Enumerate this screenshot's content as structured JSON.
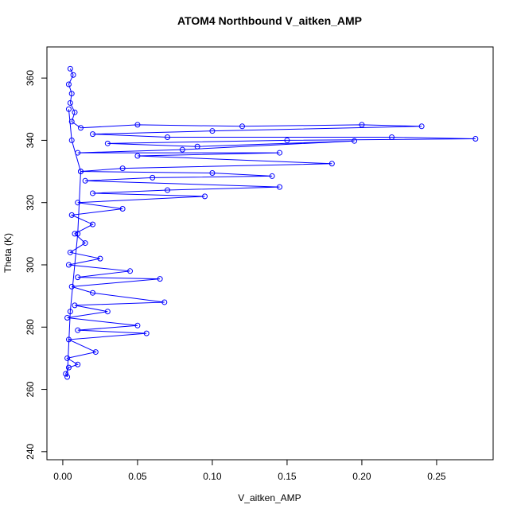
{
  "chart_data": {
    "type": "line",
    "title": "ATOM4 Northbound V_aitken_AMP",
    "x_label": "V_aitken_AMP",
    "y_label": "Theta (K)",
    "color": "#0000ff",
    "markers": true,
    "xlim": [
      -0.0106,
      0.2878
    ],
    "ylim": [
      237.4,
      370
    ],
    "xticks": [
      {
        "value": 0,
        "label": "0.00"
      },
      0.05,
      {
        "value": 0.1,
        "label": "0.10"
      },
      0.15,
      {
        "value": 0.2,
        "label": "0.20"
      },
      0.25
    ],
    "yticks": [
      240,
      260,
      280,
      300,
      320,
      340,
      360
    ],
    "x": [
      0.005,
      0.007,
      0.004,
      0.006,
      0.005,
      0.008,
      0.006,
      0.012,
      0.05,
      0.12,
      0.2,
      0.24,
      0.1,
      0.02,
      0.07,
      0.22,
      0.276,
      0.15,
      0.03,
      0.09,
      0.195,
      0.08,
      0.01,
      0.145,
      0.05,
      0.18,
      0.04,
      0.012,
      0.1,
      0.14,
      0.06,
      0.015,
      0.145,
      0.07,
      0.02,
      0.095,
      0.01,
      0.04,
      0.006,
      0.02,
      0.008,
      0.015,
      0.005,
      0.025,
      0.004,
      0.045,
      0.01,
      0.065,
      0.006,
      0.02,
      0.068,
      0.008,
      0.03,
      0.003,
      0.05,
      0.01,
      0.056,
      0.004,
      0.022,
      0.003,
      0.01,
      0.004,
      0.002,
      0.003,
      0.005,
      0.01,
      0.012,
      0.006,
      0.004
    ],
    "values": [
      363,
      361,
      358,
      355,
      352,
      349,
      346,
      344,
      345,
      344.5,
      345,
      344.5,
      343,
      342,
      341,
      341,
      340.5,
      340,
      339,
      338,
      339.8,
      337,
      336,
      336,
      335,
      332.5,
      331,
      330,
      329.5,
      328.5,
      328,
      327,
      325,
      324,
      323,
      322,
      320,
      318,
      316,
      313,
      310,
      307,
      304,
      302,
      300,
      298,
      296,
      295.5,
      293,
      291,
      288,
      287,
      285,
      283,
      280.5,
      279,
      278,
      276,
      272,
      270,
      268,
      267,
      265,
      264,
      285,
      310,
      330,
      340,
      350
    ]
  }
}
